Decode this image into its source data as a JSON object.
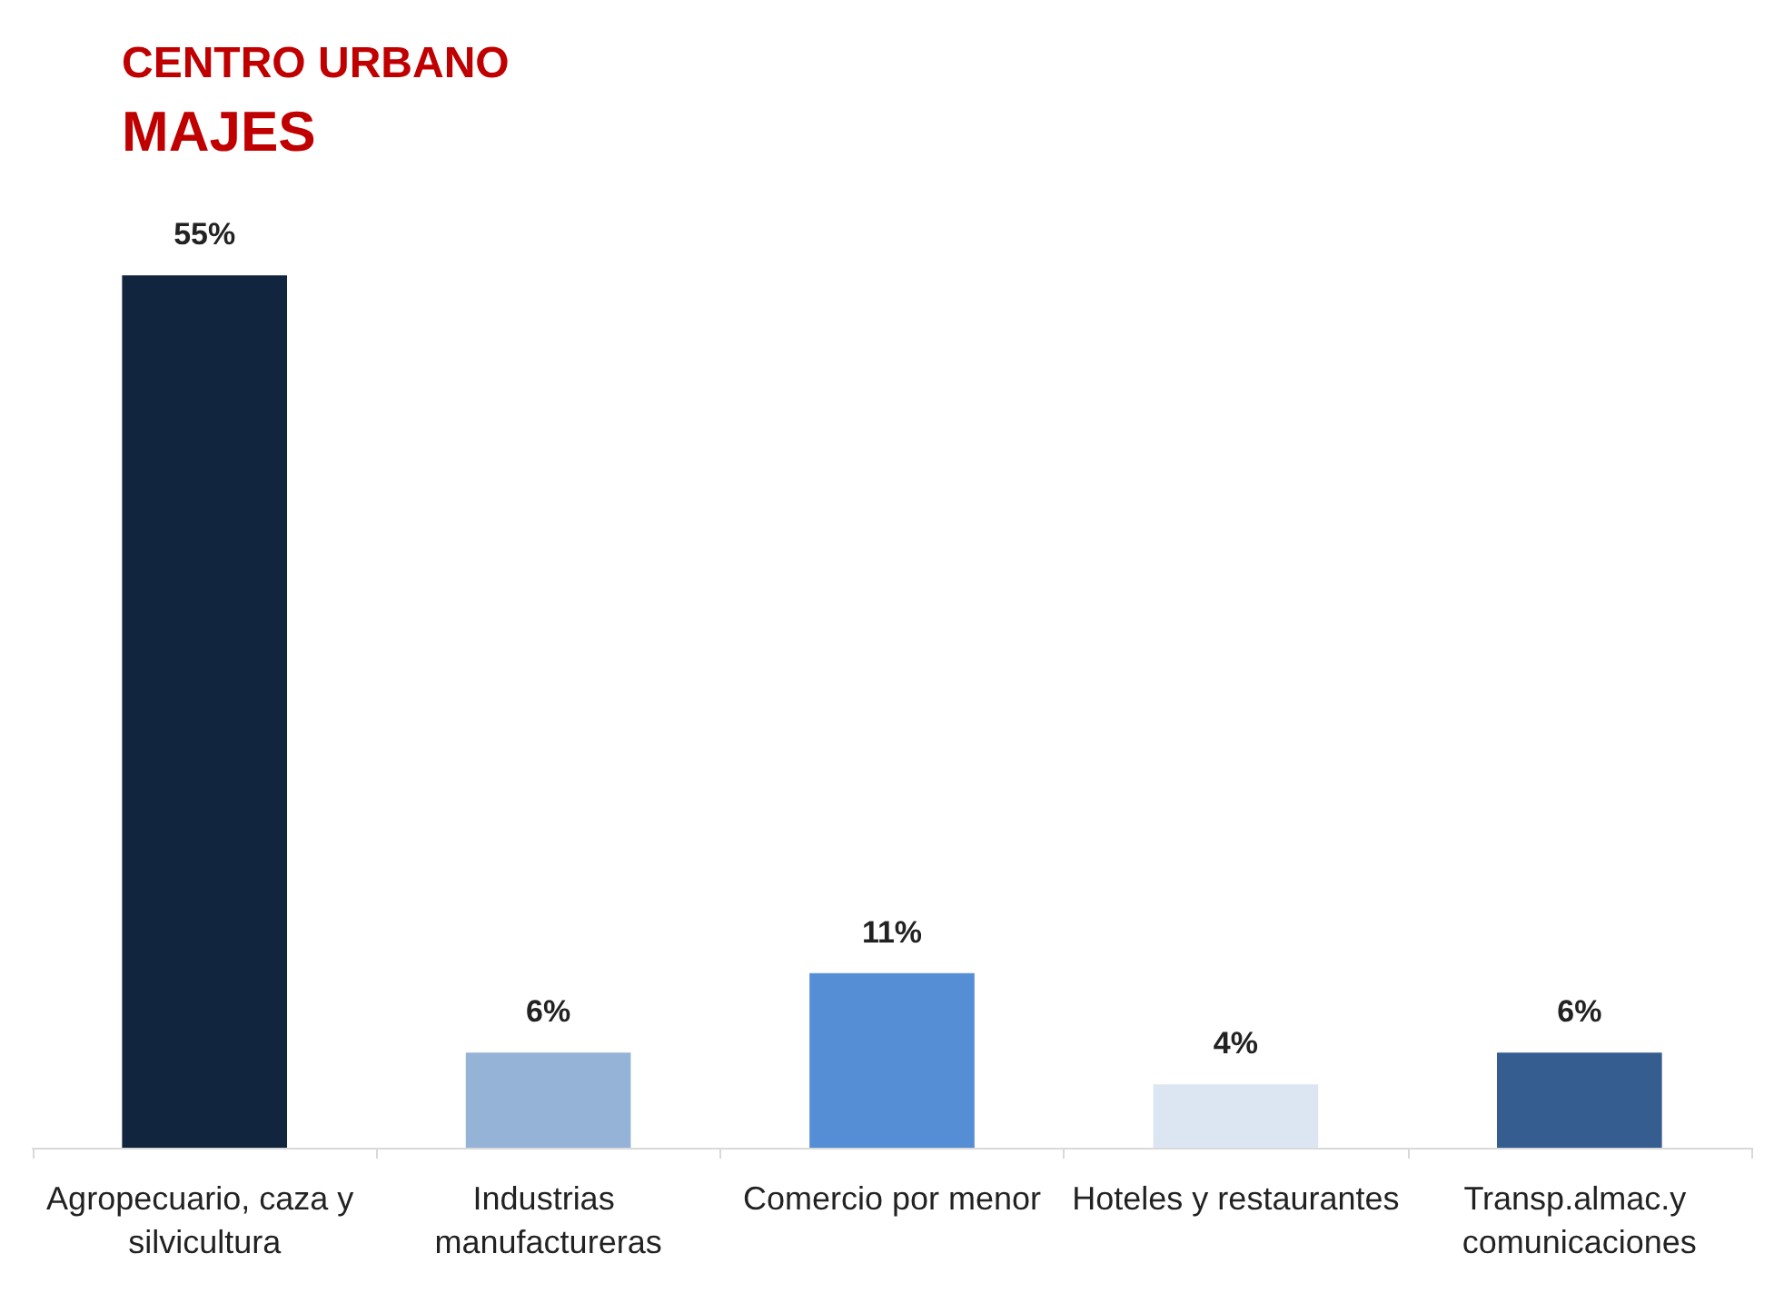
{
  "chart_data": {
    "type": "bar",
    "title": "CENTRO URBANO",
    "subtitle": "MAJES",
    "categories": [
      "Agropecuario, caza y silvicultura",
      "Industrias manufactureras",
      "Comercio por menor",
      "Hoteles y restaurantes",
      "Transp.almac.y comunicaciones"
    ],
    "values": [
      55,
      6,
      11,
      4,
      6
    ],
    "value_labels": [
      "55%",
      "6%",
      "11%",
      "4%",
      "6%"
    ],
    "colors": [
      "#12253f",
      "#95b3d7",
      "#558ed5",
      "#dce6f2",
      "#355d8f"
    ]
  }
}
